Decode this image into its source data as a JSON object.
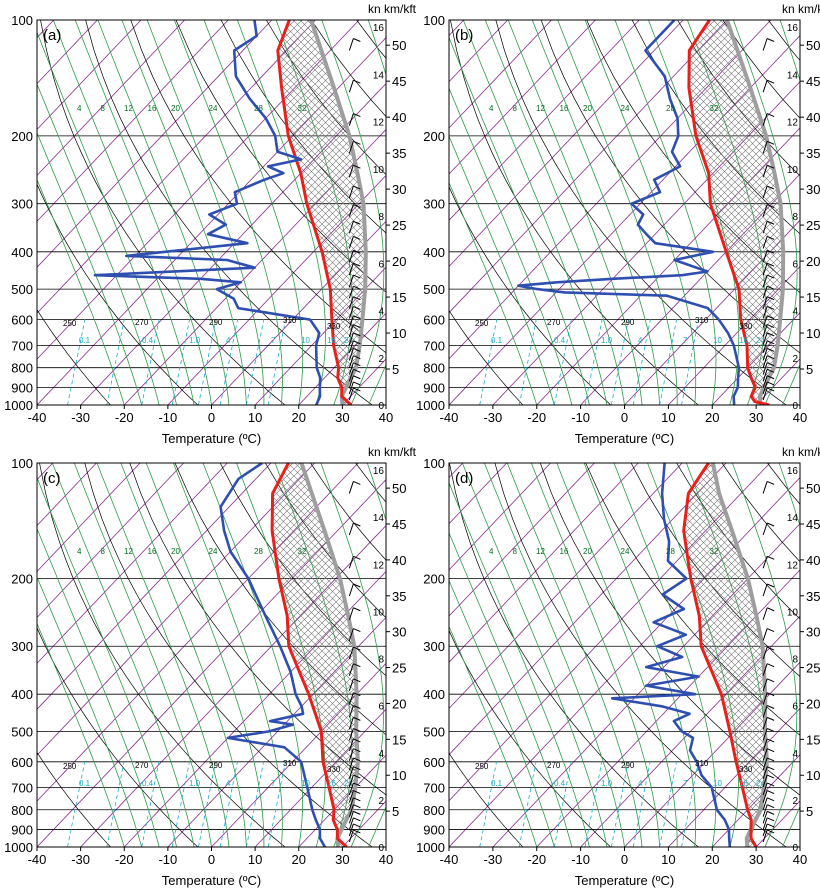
{
  "figure": {
    "x_axis_label": "Temperature (ºC)",
    "right_axis_label": "kn km/kft",
    "colors": {
      "temperature": "#e8201c",
      "dewpoint": "#2f4fb0",
      "parcel": "#9e9e9e",
      "isotherm": "#8a2b8f",
      "dry_adiabat": "#000000",
      "moist_adiabat": "#2d9b4a",
      "mixing_ratio": "#1aaecd",
      "isobar": "#000000"
    }
  },
  "chart_data": [
    {
      "panel": "(a)",
      "type": "skew-t log-p sounding",
      "pressure_ticks": [
        100,
        200,
        300,
        400,
        500,
        600,
        700,
        800,
        900,
        1000
      ],
      "temp_ticks": [
        -40,
        -30,
        -20,
        -10,
        0,
        10,
        20,
        30,
        40
      ],
      "km_ticks": [
        0,
        2,
        4,
        6,
        8,
        10,
        12,
        14,
        16
      ],
      "kft_ticks": [
        5,
        10,
        15,
        20,
        25,
        30,
        35,
        40,
        45,
        50
      ],
      "theta_labels": [
        "250",
        "270",
        "290",
        "310",
        "330"
      ],
      "mix_top_labels": [
        "4",
        "8",
        "12",
        "16",
        "20",
        "24",
        "28",
        "32"
      ],
      "mix_bottom_labels": [
        "0.1",
        "0.4",
        "1.0",
        "4",
        "7",
        "10",
        "16",
        "24"
      ],
      "series": [
        {
          "name": "temperature",
          "p": [
            1000,
            950,
            900,
            850,
            800,
            700,
            600,
            500,
            400,
            300,
            250,
            200,
            150,
            120,
            100
          ],
          "t": [
            32,
            28,
            26,
            23,
            21,
            15,
            9,
            2,
            -8,
            -22,
            -30,
            -41,
            -53,
            -62,
            -66
          ]
        },
        {
          "name": "dewpoint",
          "p": [
            1000,
            950,
            900,
            850,
            800,
            700,
            650,
            600,
            560,
            530,
            500,
            480,
            470,
            460,
            440,
            420,
            410,
            380,
            360,
            340,
            320,
            300,
            280,
            260,
            250,
            240,
            230,
            220,
            200,
            180,
            160,
            140,
            120,
            110,
            100
          ],
          "t": [
            24,
            23,
            21,
            19,
            16,
            11,
            9,
            4,
            -15,
            -18,
            -24,
            -20,
            -30,
            -55,
            -20,
            -28,
            -52,
            -27,
            -38,
            -36,
            -42,
            -38,
            -41,
            -37,
            -34,
            -39,
            -33,
            -40,
            -44,
            -50,
            -58,
            -66,
            -72,
            -70,
            -74
          ]
        },
        {
          "name": "parcel",
          "p": [
            1000,
            950,
            900,
            850,
            800,
            700,
            600,
            500,
            400,
            300,
            250,
            200,
            150,
            120,
            100
          ],
          "t": [
            30,
            28,
            27,
            26,
            25,
            21,
            16,
            10,
            2,
            -9,
            -17,
            -27,
            -41,
            -52,
            -61
          ]
        }
      ],
      "wind_barbs": true
    },
    {
      "panel": "(b)",
      "type": "skew-t log-p sounding",
      "pressure_ticks": [
        100,
        200,
        300,
        400,
        500,
        600,
        700,
        800,
        900,
        1000
      ],
      "temp_ticks": [
        -40,
        -30,
        -20,
        -10,
        0,
        10,
        20,
        30,
        40
      ],
      "km_ticks": [
        0,
        2,
        4,
        6,
        8,
        10,
        12,
        14,
        16
      ],
      "kft_ticks": [
        5,
        10,
        15,
        20,
        25,
        30,
        35,
        40,
        45,
        50
      ],
      "theta_labels": [
        "250",
        "270",
        "290",
        "310",
        "330"
      ],
      "mix_top_labels": [
        "4",
        "8",
        "12",
        "16",
        "20",
        "24",
        "28",
        "32"
      ],
      "mix_bottom_labels": [
        "0.1",
        "0.4",
        "1.0",
        "4",
        "7",
        "10",
        "16",
        "24"
      ],
      "series": [
        {
          "name": "temperature",
          "p": [
            1000,
            980,
            950,
            900,
            850,
            800,
            700,
            600,
            500,
            400,
            300,
            250,
            200,
            150,
            120,
            100
          ],
          "t": [
            33,
            29,
            27,
            26,
            23,
            20,
            15,
            8,
            1,
            -10,
            -24,
            -31,
            -42,
            -54,
            -62,
            -64
          ]
        },
        {
          "name": "dewpoint",
          "p": [
            1000,
            950,
            900,
            850,
            800,
            700,
            650,
            600,
            560,
            520,
            510,
            500,
            490,
            480,
            470,
            460,
            450,
            420,
            400,
            380,
            360,
            340,
            320,
            300,
            280,
            260,
            240,
            220,
            200,
            180,
            160,
            140,
            120,
            100
          ],
          "t": [
            25,
            23,
            22,
            20,
            18,
            12,
            8,
            3,
            -2,
            -14,
            -38,
            -45,
            -50,
            -42,
            -30,
            -15,
            -10,
            -20,
            -13,
            -28,
            -32,
            -36,
            -37,
            -42,
            -38,
            -42,
            -39,
            -44,
            -46,
            -50,
            -56,
            -62,
            -72,
            -72
          ]
        },
        {
          "name": "parcel",
          "p": [
            1000,
            950,
            900,
            850,
            800,
            700,
            600,
            500,
            400,
            300,
            250,
            200,
            150,
            120,
            100
          ],
          "t": [
            31,
            29,
            28,
            27,
            26,
            22,
            17,
            11,
            3,
            -8,
            -16,
            -26,
            -40,
            -51,
            -60
          ]
        }
      ],
      "wind_barbs": true
    },
    {
      "panel": "(c)",
      "type": "skew-t log-p sounding",
      "pressure_ticks": [
        100,
        200,
        300,
        400,
        500,
        600,
        700,
        800,
        900,
        1000
      ],
      "temp_ticks": [
        -40,
        -30,
        -20,
        -10,
        0,
        10,
        20,
        30,
        40
      ],
      "km_ticks": [
        0,
        2,
        4,
        6,
        8,
        10,
        12,
        14,
        16
      ],
      "kft_ticks": [
        5,
        10,
        15,
        20,
        25,
        30,
        35,
        40,
        45,
        50
      ],
      "theta_labels": [
        "250",
        "270",
        "290",
        "310",
        "330"
      ],
      "mix_top_labels": [
        "4",
        "8",
        "12",
        "16",
        "20",
        "24",
        "28",
        "32"
      ],
      "mix_bottom_labels": [
        "0.1",
        "0.4",
        "1.0",
        "4",
        "7",
        "10",
        "16",
        "24"
      ],
      "series": [
        {
          "name": "temperature",
          "p": [
            1000,
            950,
            900,
            850,
            800,
            700,
            600,
            500,
            400,
            300,
            250,
            200,
            150,
            120,
            100
          ],
          "t": [
            31,
            27,
            25,
            22,
            20,
            14,
            7,
            0,
            -11,
            -26,
            -33,
            -43,
            -55,
            -63,
            -66
          ]
        },
        {
          "name": "dewpoint",
          "p": [
            1000,
            950,
            900,
            850,
            800,
            700,
            600,
            550,
            520,
            500,
            480,
            470,
            450,
            430,
            400,
            350,
            300,
            250,
            200,
            170,
            150,
            130,
            110,
            100
          ],
          "t": [
            26,
            23,
            21,
            18,
            15,
            9,
            2,
            -5,
            -20,
            -12,
            -8,
            -14,
            -8,
            -10,
            -14,
            -20,
            -28,
            -38,
            -50,
            -60,
            -66,
            -72,
            -74,
            -72
          ]
        },
        {
          "name": "parcel",
          "p": [
            1000,
            950,
            900,
            850,
            800,
            700,
            600,
            500,
            400,
            300,
            250,
            200,
            150,
            120,
            100
          ],
          "t": [
            29,
            27,
            26,
            25,
            24,
            20,
            15,
            8,
            0,
            -11,
            -19,
            -29,
            -43,
            -54,
            -63
          ]
        }
      ],
      "wind_barbs": true
    },
    {
      "panel": "(d)",
      "type": "skew-t log-p sounding",
      "pressure_ticks": [
        100,
        200,
        300,
        400,
        500,
        600,
        700,
        800,
        900,
        1000
      ],
      "temp_ticks": [
        -40,
        -30,
        -20,
        -10,
        0,
        10,
        20,
        30,
        40
      ],
      "km_ticks": [
        0,
        2,
        4,
        6,
        8,
        10,
        12,
        14,
        16
      ],
      "kft_ticks": [
        5,
        10,
        15,
        20,
        25,
        30,
        35,
        40,
        45,
        50
      ],
      "theta_labels": [
        "250",
        "270",
        "290",
        "310",
        "330"
      ],
      "mix_top_labels": [
        "4",
        "8",
        "12",
        "16",
        "20",
        "24",
        "28",
        "32"
      ],
      "mix_bottom_labels": [
        "0.1",
        "0.4",
        "1.0",
        "4",
        "7",
        "10",
        "16",
        "24"
      ],
      "series": [
        {
          "name": "temperature",
          "p": [
            1000,
            950,
            900,
            850,
            800,
            700,
            600,
            500,
            400,
            300,
            250,
            200,
            150,
            120,
            100
          ],
          "t": [
            30,
            27,
            25,
            23,
            20,
            14,
            7,
            -1,
            -11,
            -26,
            -33,
            -43,
            -55,
            -62,
            -64
          ]
        },
        {
          "name": "dewpoint",
          "p": [
            1000,
            950,
            900,
            850,
            800,
            700,
            650,
            600,
            560,
            520,
            500,
            470,
            450,
            430,
            410,
            400,
            380,
            360,
            340,
            320,
            300,
            280,
            260,
            240,
            220,
            200,
            180,
            160,
            140,
            120,
            100
          ],
          "t": [
            24,
            22,
            20,
            17,
            13,
            7,
            2,
            -2,
            -6,
            -8,
            -12,
            -16,
            -14,
            -22,
            -35,
            -17,
            -30,
            -20,
            -34,
            -28,
            -36,
            -32,
            -42,
            -38,
            -46,
            -44,
            -52,
            -56,
            -62,
            -68,
            -74
          ]
        },
        {
          "name": "parcel",
          "p": [
            1000,
            950,
            900,
            850,
            800,
            700,
            600,
            500,
            400,
            300,
            250,
            200,
            150,
            120,
            100
          ],
          "t": [
            28,
            26,
            25,
            24,
            23,
            19,
            14,
            7,
            -1,
            -12,
            -20,
            -30,
            -44,
            -55,
            -63
          ]
        }
      ],
      "wind_barbs": true
    }
  ]
}
